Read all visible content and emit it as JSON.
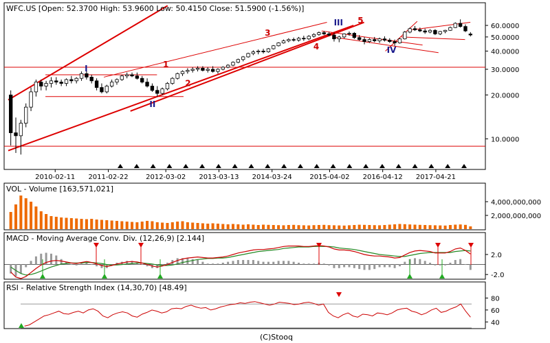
{
  "header": {
    "main_title": "WFC.US [Open: 52.3700  High: 53.9600  Low: 50.4150  Close: 51.5900  (-1.56%)]",
    "volume_title": "VOL - Volume [163,571,021]",
    "macd_title": "MACD - Moving Average Conv. Div. (12,26,9) [2.144]",
    "rsi_title": "RSI - Relative Strength Index (14,30,70) [48.49]",
    "footer": "(C)Stooq"
  },
  "colors": {
    "up_candle": "#ffffff",
    "down_candle": "#000000",
    "trend_line": "#dd0000",
    "volume_bar": "#ee6a00",
    "macd_line": "#cc0000",
    "signal_line": "#228822",
    "histogram": "#999999",
    "rsi_line": "#cc0000",
    "wave_red": "#cc0000",
    "wave_blue": "#1a1a8c",
    "sell_marker": "#dd0000",
    "buy_marker": "#22aa22"
  },
  "chart_data": [
    {
      "type": "candlestick",
      "title": "WFC.US",
      "scale": "log",
      "x_tick_labels": [
        "2010-02-11",
        "2011-02-22",
        "2012-03-02",
        "2013-03-13",
        "2014-03-24",
        "2015-04-02",
        "2016-04-12",
        "2017-04-21"
      ],
      "y_tick_labels": [
        "60.0000",
        "50.0000",
        "40.0000",
        "30.0000",
        "20.0000",
        "10.0000"
      ],
      "y_tick_values": [
        60,
        50,
        40,
        30,
        20,
        10
      ],
      "ylim": [
        6.3,
        84
      ],
      "horizontal_levels": [
        31,
        8.9
      ],
      "wave_labels": [
        {
          "text": "I",
          "color": "blue",
          "x": "2010-09",
          "y": 29
        },
        {
          "text": "II",
          "color": "blue",
          "x": "2011-12",
          "y": 16.5
        },
        {
          "text": "III",
          "color": "blue",
          "x": "2015-06",
          "y": 60
        },
        {
          "text": "IV",
          "color": "blue",
          "x": "2016-06",
          "y": 39
        },
        {
          "text": "1",
          "color": "red",
          "x": "2012-03",
          "y": 31
        },
        {
          "text": "2",
          "color": "red",
          "x": "2012-08",
          "y": 23
        },
        {
          "text": "3",
          "color": "red",
          "x": "2014-02",
          "y": 51
        },
        {
          "text": "4",
          "color": "red",
          "x": "2015-01",
          "y": 41
        },
        {
          "text": "5",
          "color": "red",
          "x": "2015-11",
          "y": 62
        }
      ],
      "weekly_candles": [
        {
          "o": 20.0,
          "h": 21.5,
          "l": 9.0,
          "c": 11.0
        },
        {
          "o": 11.0,
          "h": 14.0,
          "l": 8.0,
          "c": 10.5
        },
        {
          "o": 10.5,
          "h": 13.5,
          "l": 7.8,
          "c": 12.8
        },
        {
          "o": 12.8,
          "h": 17.5,
          "l": 12.0,
          "c": 16.5
        },
        {
          "o": 16.5,
          "h": 22.5,
          "l": 15.5,
          "c": 21.0
        },
        {
          "o": 21.0,
          "h": 25.5,
          "l": 19.5,
          "c": 24.5
        },
        {
          "o": 24.5,
          "h": 25.5,
          "l": 21.5,
          "c": 23.0
        },
        {
          "o": 23.0,
          "h": 25.0,
          "l": 21.5,
          "c": 24.0
        },
        {
          "o": 24.0,
          "h": 26.5,
          "l": 22.5,
          "c": 25.0
        },
        {
          "o": 25.0,
          "h": 26.5,
          "l": 23.5,
          "c": 24.5
        },
        {
          "o": 24.5,
          "h": 25.5,
          "l": 23.0,
          "c": 24.0
        },
        {
          "o": 24.0,
          "h": 26.0,
          "l": 23.0,
          "c": 25.5
        },
        {
          "o": 25.5,
          "h": 27.0,
          "l": 24.0,
          "c": 25.0
        },
        {
          "o": 25.0,
          "h": 26.5,
          "l": 24.0,
          "c": 26.0
        },
        {
          "o": 26.0,
          "h": 29.0,
          "l": 25.0,
          "c": 28.0
        },
        {
          "o": 28.0,
          "h": 29.5,
          "l": 25.5,
          "c": 26.5
        },
        {
          "o": 26.5,
          "h": 27.5,
          "l": 24.0,
          "c": 25.0
        },
        {
          "o": 25.0,
          "h": 26.0,
          "l": 21.5,
          "c": 22.5
        },
        {
          "o": 22.5,
          "h": 24.0,
          "l": 20.5,
          "c": 21.0
        },
        {
          "o": 21.0,
          "h": 23.5,
          "l": 20.5,
          "c": 23.0
        },
        {
          "o": 23.0,
          "h": 25.5,
          "l": 22.5,
          "c": 24.5
        },
        {
          "o": 24.5,
          "h": 26.0,
          "l": 23.5,
          "c": 25.5
        },
        {
          "o": 25.5,
          "h": 27.5,
          "l": 25.0,
          "c": 27.0
        },
        {
          "o": 27.0,
          "h": 28.5,
          "l": 26.0,
          "c": 27.5
        },
        {
          "o": 27.5,
          "h": 28.5,
          "l": 26.5,
          "c": 27.0
        },
        {
          "o": 27.0,
          "h": 28.5,
          "l": 25.5,
          "c": 26.0
        },
        {
          "o": 26.0,
          "h": 27.0,
          "l": 24.0,
          "c": 24.5
        },
        {
          "o": 24.5,
          "h": 26.0,
          "l": 22.5,
          "c": 23.0
        },
        {
          "o": 23.0,
          "h": 24.0,
          "l": 21.0,
          "c": 21.5
        },
        {
          "o": 21.5,
          "h": 23.0,
          "l": 19.5,
          "c": 20.5
        },
        {
          "o": 20.5,
          "h": 22.5,
          "l": 20.0,
          "c": 22.0
        },
        {
          "o": 22.0,
          "h": 24.5,
          "l": 21.5,
          "c": 24.0
        },
        {
          "o": 24.0,
          "h": 26.5,
          "l": 23.5,
          "c": 26.0
        },
        {
          "o": 26.0,
          "h": 28.5,
          "l": 25.5,
          "c": 28.0
        },
        {
          "o": 28.0,
          "h": 29.5,
          "l": 27.0,
          "c": 29.0
        },
        {
          "o": 29.0,
          "h": 30.5,
          "l": 28.0,
          "c": 29.5
        },
        {
          "o": 29.5,
          "h": 31.0,
          "l": 28.5,
          "c": 30.0
        },
        {
          "o": 30.0,
          "h": 31.5,
          "l": 29.0,
          "c": 30.5
        },
        {
          "o": 30.5,
          "h": 31.5,
          "l": 29.0,
          "c": 29.5
        },
        {
          "o": 29.5,
          "h": 31.0,
          "l": 28.5,
          "c": 30.0
        },
        {
          "o": 30.0,
          "h": 31.5,
          "l": 28.5,
          "c": 29.0
        },
        {
          "o": 29.0,
          "h": 30.5,
          "l": 28.0,
          "c": 30.0
        },
        {
          "o": 30.0,
          "h": 31.5,
          "l": 29.5,
          "c": 31.0
        },
        {
          "o": 31.0,
          "h": 32.5,
          "l": 30.5,
          "c": 32.0
        },
        {
          "o": 32.0,
          "h": 34.0,
          "l": 31.5,
          "c": 33.5
        },
        {
          "o": 33.5,
          "h": 35.5,
          "l": 33.0,
          "c": 35.0
        },
        {
          "o": 35.0,
          "h": 37.0,
          "l": 34.0,
          "c": 36.5
        },
        {
          "o": 36.5,
          "h": 39.0,
          "l": 36.0,
          "c": 38.5
        },
        {
          "o": 38.5,
          "h": 40.5,
          "l": 37.5,
          "c": 39.5
        },
        {
          "o": 39.5,
          "h": 41.0,
          "l": 38.0,
          "c": 40.0
        },
        {
          "o": 40.0,
          "h": 41.5,
          "l": 38.5,
          "c": 39.5
        },
        {
          "o": 39.5,
          "h": 42.0,
          "l": 39.0,
          "c": 41.5
        },
        {
          "o": 41.5,
          "h": 44.0,
          "l": 41.0,
          "c": 43.5
        },
        {
          "o": 43.5,
          "h": 46.0,
          "l": 43.0,
          "c": 45.5
        },
        {
          "o": 45.5,
          "h": 48.0,
          "l": 45.0,
          "c": 47.0
        },
        {
          "o": 47.0,
          "h": 49.0,
          "l": 46.0,
          "c": 48.0
        },
        {
          "o": 48.0,
          "h": 49.5,
          "l": 46.5,
          "c": 47.5
        },
        {
          "o": 47.5,
          "h": 50.0,
          "l": 46.5,
          "c": 49.0
        },
        {
          "o": 49.0,
          "h": 51.0,
          "l": 47.0,
          "c": 48.5
        },
        {
          "o": 48.5,
          "h": 51.5,
          "l": 47.5,
          "c": 50.5
        },
        {
          "o": 50.5,
          "h": 53.0,
          "l": 49.5,
          "c": 52.0
        },
        {
          "o": 52.0,
          "h": 54.5,
          "l": 51.0,
          "c": 53.5
        },
        {
          "o": 53.5,
          "h": 55.0,
          "l": 51.5,
          "c": 52.5
        },
        {
          "o": 52.5,
          "h": 54.0,
          "l": 50.5,
          "c": 51.5
        },
        {
          "o": 51.5,
          "h": 53.5,
          "l": 46.5,
          "c": 48.5
        },
        {
          "o": 48.5,
          "h": 51.0,
          "l": 46.0,
          "c": 50.0
        },
        {
          "o": 50.0,
          "h": 53.0,
          "l": 49.0,
          "c": 52.5
        },
        {
          "o": 52.5,
          "h": 54.5,
          "l": 51.0,
          "c": 53.0
        },
        {
          "o": 53.0,
          "h": 54.0,
          "l": 48.5,
          "c": 49.5
        },
        {
          "o": 49.5,
          "h": 51.5,
          "l": 47.0,
          "c": 48.0
        },
        {
          "o": 48.0,
          "h": 50.0,
          "l": 44.5,
          "c": 46.5
        },
        {
          "o": 46.5,
          "h": 49.0,
          "l": 45.5,
          "c": 48.0
        },
        {
          "o": 48.0,
          "h": 50.0,
          "l": 46.0,
          "c": 47.0
        },
        {
          "o": 47.0,
          "h": 49.5,
          "l": 45.5,
          "c": 48.5
        },
        {
          "o": 48.5,
          "h": 50.5,
          "l": 46.5,
          "c": 47.5
        },
        {
          "o": 47.5,
          "h": 49.0,
          "l": 45.5,
          "c": 46.5
        },
        {
          "o": 46.5,
          "h": 48.0,
          "l": 43.5,
          "c": 45.5
        },
        {
          "o": 45.5,
          "h": 49.0,
          "l": 45.0,
          "c": 48.5
        },
        {
          "o": 48.5,
          "h": 55.0,
          "l": 48.0,
          "c": 54.0
        },
        {
          "o": 54.0,
          "h": 58.0,
          "l": 53.0,
          "c": 57.0
        },
        {
          "o": 57.0,
          "h": 59.5,
          "l": 55.0,
          "c": 56.0
        },
        {
          "o": 56.0,
          "h": 58.0,
          "l": 54.0,
          "c": 55.0
        },
        {
          "o": 55.0,
          "h": 57.0,
          "l": 52.5,
          "c": 54.0
        },
        {
          "o": 54.0,
          "h": 56.5,
          "l": 53.0,
          "c": 55.5
        },
        {
          "o": 55.5,
          "h": 56.5,
          "l": 51.5,
          "c": 52.5
        },
        {
          "o": 52.5,
          "h": 55.0,
          "l": 51.5,
          "c": 54.5
        },
        {
          "o": 54.5,
          "h": 56.0,
          "l": 53.0,
          "c": 55.5
        },
        {
          "o": 55.5,
          "h": 59.0,
          "l": 55.0,
          "c": 58.0
        },
        {
          "o": 58.0,
          "h": 63.0,
          "l": 57.5,
          "c": 62.0
        },
        {
          "o": 62.0,
          "h": 66.0,
          "l": 58.0,
          "c": 59.0
        },
        {
          "o": 59.0,
          "h": 61.0,
          "l": 54.0,
          "c": 55.0
        },
        {
          "o": 52.37,
          "h": 53.96,
          "l": 50.415,
          "c": 51.59
        }
      ],
      "marker_count": 22
    },
    {
      "type": "bar",
      "title": "VOL - Volume",
      "y_tick_labels": [
        "4,000,000,000",
        "2,000,000,000"
      ],
      "y_tick_values": [
        4000000000,
        2000000000
      ],
      "ylim": [
        0,
        5200000000
      ],
      "values": [
        2500000000,
        3600000000,
        4900000000,
        4500000000,
        4000000000,
        3300000000,
        2600000000,
        2200000000,
        1900000000,
        1800000000,
        1700000000,
        1650000000,
        1600000000,
        1550000000,
        1500000000,
        1450000000,
        1500000000,
        1400000000,
        1350000000,
        1300000000,
        1250000000,
        1200000000,
        1150000000,
        1100000000,
        1050000000,
        1000000000,
        1100000000,
        1200000000,
        1150000000,
        1000000000,
        950000000,
        900000000,
        1000000000,
        1100000000,
        1150000000,
        1000000000,
        950000000,
        900000000,
        850000000,
        800000000,
        850000000,
        800000000,
        750000000,
        700000000,
        750000000,
        700000000,
        650000000,
        700000000,
        650000000,
        600000000,
        650000000,
        620000000,
        600000000,
        580000000,
        560000000,
        600000000,
        620000000,
        580000000,
        560000000,
        540000000,
        580000000,
        600000000,
        620000000,
        580000000,
        560000000,
        540000000,
        520000000,
        560000000,
        600000000,
        640000000,
        620000000,
        600000000,
        580000000,
        560000000,
        600000000,
        650000000,
        700000000,
        750000000,
        720000000,
        680000000,
        650000000,
        620000000,
        600000000,
        580000000,
        560000000,
        540000000,
        520000000,
        600000000,
        650000000,
        680000000,
        620000000,
        400000000
      ]
    },
    {
      "type": "line",
      "title": "MACD - Moving Average Conv. Div. (12,26,9)",
      "y_tick_labels": [
        "2.0",
        "-2.0"
      ],
      "y_tick_values": [
        2,
        -2
      ],
      "ylim": [
        -2.8,
        4.6
      ],
      "series": [
        {
          "name": "MACD",
          "values": [
            -1.5,
            -2.5,
            -2.8,
            -2.4,
            -1.6,
            -0.8,
            -0.1,
            0.4,
            0.7,
            0.8,
            0.7,
            0.5,
            0.3,
            0.2,
            0.4,
            0.6,
            0.4,
            0.1,
            -0.2,
            -0.4,
            -0.2,
            0.1,
            0.3,
            0.5,
            0.6,
            0.5,
            0.3,
            0.0,
            -0.3,
            -0.5,
            -0.3,
            0.0,
            0.4,
            0.8,
            1.1,
            1.3,
            1.4,
            1.5,
            1.4,
            1.3,
            1.3,
            1.4,
            1.5,
            1.7,
            2.0,
            2.3,
            2.5,
            2.7,
            2.9,
            3.0,
            3.0,
            3.1,
            3.2,
            3.4,
            3.6,
            3.7,
            3.7,
            3.7,
            3.6,
            3.6,
            3.7,
            3.8,
            3.7,
            3.5,
            3.1,
            2.9,
            2.9,
            2.8,
            2.6,
            2.3,
            2.0,
            1.8,
            1.7,
            1.7,
            1.6,
            1.5,
            1.3,
            1.4,
            1.9,
            2.4,
            2.7,
            2.8,
            2.7,
            2.6,
            2.3,
            2.3,
            2.3,
            2.6,
            3.1,
            3.3,
            2.8,
            2.1
          ]
        },
        {
          "name": "Signal",
          "values": [
            -0.5,
            -1.2,
            -1.8,
            -2.1,
            -2.0,
            -1.7,
            -1.3,
            -0.9,
            -0.5,
            -0.2,
            0.1,
            0.2,
            0.3,
            0.3,
            0.3,
            0.4,
            0.4,
            0.3,
            0.2,
            0.0,
            -0.1,
            -0.1,
            0.0,
            0.1,
            0.2,
            0.3,
            0.3,
            0.2,
            0.1,
            -0.1,
            -0.2,
            -0.2,
            -0.1,
            0.1,
            0.4,
            0.6,
            0.8,
            1.0,
            1.1,
            1.2,
            1.2,
            1.3,
            1.3,
            1.4,
            1.6,
            1.8,
            2.0,
            2.2,
            2.4,
            2.6,
            2.7,
            2.8,
            2.9,
            3.0,
            3.2,
            3.3,
            3.4,
            3.5,
            3.5,
            3.5,
            3.6,
            3.6,
            3.6,
            3.6,
            3.5,
            3.3,
            3.2,
            3.1,
            3.0,
            2.8,
            2.6,
            2.4,
            2.2,
            2.0,
            1.9,
            1.8,
            1.7,
            1.6,
            1.6,
            1.8,
            2.0,
            2.2,
            2.3,
            2.4,
            2.4,
            2.4,
            2.4,
            2.4,
            2.6,
            2.7,
            2.8,
            2.7
          ]
        }
      ],
      "sell_signals": 5,
      "buy_signals": 5
    },
    {
      "type": "line",
      "title": "RSI - Relative Strength Index (14,30,70)",
      "y_tick_labels": [
        "80",
        "60",
        "40"
      ],
      "y_tick_values": [
        80,
        60,
        40
      ],
      "ylim": [
        30,
        92
      ],
      "bands": [
        70,
        30
      ],
      "series": [
        {
          "name": "RSI",
          "values": [
            33,
            35,
            40,
            45,
            50,
            52,
            55,
            58,
            54,
            53,
            56,
            58,
            55,
            60,
            62,
            58,
            50,
            47,
            52,
            55,
            57,
            55,
            50,
            48,
            53,
            56,
            60,
            58,
            55,
            57,
            62,
            63,
            62,
            66,
            68,
            65,
            63,
            64,
            60,
            62,
            65,
            67,
            69,
            70,
            72,
            71,
            73,
            74,
            72,
            70,
            68,
            70,
            73,
            72,
            71,
            69,
            70,
            72,
            73,
            71,
            68,
            70,
            56,
            50,
            47,
            52,
            55,
            50,
            48,
            53,
            52,
            50,
            55,
            54,
            52,
            55,
            60,
            62,
            63,
            58,
            56,
            52,
            55,
            60,
            63,
            56,
            58,
            62,
            65,
            70,
            58,
            48
          ]
        }
      ],
      "markers": 2
    }
  ]
}
